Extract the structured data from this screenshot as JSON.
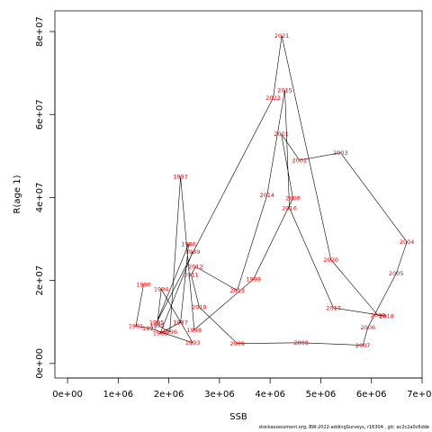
{
  "chart_data": {
    "type": "line",
    "xlabel": "SSB",
    "ylabel": "R(age 1)",
    "xlim": [
      -250000,
      7000000
    ],
    "ylim": [
      -3500000,
      85000000
    ],
    "x_ticks": [
      {
        "value": 0,
        "label": "0e+00"
      },
      {
        "value": 1000000,
        "label": "1e+06"
      },
      {
        "value": 2000000,
        "label": "2e+06"
      },
      {
        "value": 3000000,
        "label": "3e+06"
      },
      {
        "value": 4000000,
        "label": "4e+06"
      },
      {
        "value": 5000000,
        "label": "5e+06"
      },
      {
        "value": 6000000,
        "label": "6e+06"
      },
      {
        "value": 7000000,
        "label": "7e+06"
      }
    ],
    "y_ticks": [
      {
        "value": 0,
        "label": "0e+00"
      },
      {
        "value": 20000000,
        "label": "2e+07"
      },
      {
        "value": 40000000,
        "label": "4e+07"
      },
      {
        "value": 60000000,
        "label": "6e+07"
      },
      {
        "value": 80000000,
        "label": "8e+07"
      }
    ],
    "line_color": "#000000",
    "label_color": "#ff0000",
    "points": [
      {
        "year": "1990",
        "x": 1500000,
        "y": 19000000
      },
      {
        "year": "1991",
        "x": 1350000,
        "y": 9000000
      },
      {
        "year": "1992",
        "x": 1620000,
        "y": 8500000
      },
      {
        "year": "1993",
        "x": 2470000,
        "y": 5000000
      },
      {
        "year": "1994",
        "x": 1850000,
        "y": 17900000
      },
      {
        "year": "1995",
        "x": 1770000,
        "y": 9300000
      },
      {
        "year": "1996",
        "x": 2020000,
        "y": 7600000
      },
      {
        "year": "1997",
        "x": 2230000,
        "y": 45000000
      },
      {
        "year": "1998",
        "x": 2500000,
        "y": 8100000
      },
      {
        "year": "1999",
        "x": 3670000,
        "y": 20300000
      },
      {
        "year": "2000",
        "x": 4450000,
        "y": 39800000
      },
      {
        "year": "2001",
        "x": 4220000,
        "y": 55300000
      },
      {
        "year": "2002",
        "x": 4580000,
        "y": 49000000
      },
      {
        "year": "2003",
        "x": 5390000,
        "y": 50800000
      },
      {
        "year": "2004",
        "x": 6700000,
        "y": 29300000
      },
      {
        "year": "2005",
        "x": 6490000,
        "y": 21700000
      },
      {
        "year": "2006",
        "x": 5930000,
        "y": 8700000
      },
      {
        "year": "2007",
        "x": 5830000,
        "y": 4400000
      },
      {
        "year": "2008",
        "x": 4610000,
        "y": 5000000
      },
      {
        "year": "2009",
        "x": 3350000,
        "y": 4800000
      },
      {
        "year": "2010",
        "x": 2600000,
        "y": 13600000
      },
      {
        "year": "2011",
        "x": 2440000,
        "y": 21400000
      },
      {
        "year": "2012",
        "x": 2530000,
        "y": 23300000
      },
      {
        "year": "2013",
        "x": 3350000,
        "y": 17600000
      },
      {
        "year": "2014",
        "x": 3940000,
        "y": 40600000
      },
      {
        "year": "2015",
        "x": 4290000,
        "y": 65900000
      },
      {
        "year": "2016",
        "x": 4380000,
        "y": 37500000
      },
      {
        "year": "2017",
        "x": 5250000,
        "y": 13400000
      },
      {
        "year": "2018",
        "x": 6300000,
        "y": 11400000
      },
      {
        "year": "2019",
        "x": 6130000,
        "y": 11600000
      },
      {
        "year": "2020",
        "x": 5200000,
        "y": 25000000
      },
      {
        "year": "2021",
        "x": 4230000,
        "y": 79000000
      },
      {
        "year": "2022",
        "x": 4060000,
        "y": 64000000
      },
      {
        "year": "1985",
        "x": 1760000,
        "y": 9900000
      },
      {
        "year": "1986",
        "x": 2390000,
        "y": 28800000
      },
      {
        "year": "1987",
        "x": 2230000,
        "y": 9900000
      },
      {
        "year": "1988",
        "x": 1830000,
        "y": 7300000
      },
      {
        "year": "1989",
        "x": 2470000,
        "y": 26900000
      }
    ]
  },
  "footnote": "stockassessment.org,  BW-2022-addingSurveys,  r16304 ,  git:  ec2c2a0c6dde"
}
